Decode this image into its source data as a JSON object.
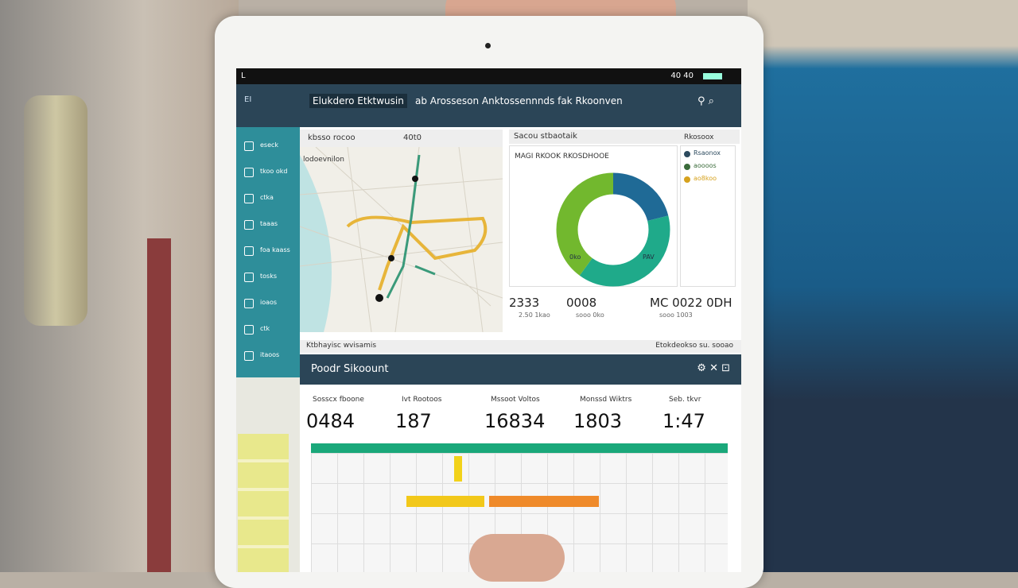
{
  "status_bar": {
    "left": "L",
    "right": "40 40"
  },
  "header": {
    "app": "EI",
    "title": "Elukdero Etktwusin",
    "subtitle": "ab Arosseson Anktossennnds fak Rkoonven"
  },
  "sidebar": {
    "items": [
      "eseck",
      "tkoo okd",
      "ctka",
      "taaas",
      "foa kaass",
      "tosks",
      "ioaos",
      "ctk",
      "itaoos"
    ]
  },
  "map_panel": {
    "tab_left": "kbsso rocoo",
    "tab_right": "40t0",
    "label": "lodoevnilon",
    "footer": "Ktbhayisc wvisamis"
  },
  "donut_panel": {
    "tab": "Sacou stbaotaik",
    "title": "MAGI RKOOK RKOSDHOOE",
    "segments": [
      {
        "color": "#1f6a96",
        "value": 21
      },
      {
        "color": "#1faa8a",
        "value": 39
      },
      {
        "color": "#72b82e",
        "value": 40
      }
    ],
    "inner_left": "0ko",
    "inner_right": "PAV"
  },
  "legend_panel": {
    "header": "Rkosoox",
    "items": [
      {
        "label": "Rsaonox",
        "color": "#2c4a5e"
      },
      {
        "label": "aoooos",
        "color": "#3a6b3a"
      },
      {
        "label": "ao8koo",
        "color": "#d6a21e"
      }
    ]
  },
  "stats": [
    {
      "value": "2333",
      "label": "2.50 1kao"
    },
    {
      "value": "0008",
      "label": "sooo 0ko"
    },
    {
      "value": "MC 0022 0DH",
      "label": "sooo 1003"
    }
  ],
  "footer_right": "Etokdeokso su. sooao",
  "section": {
    "title": "Poodr Sikoount",
    "kpis": [
      {
        "label": "Sosscx fboone",
        "value": "0484"
      },
      {
        "label": "Ivt Rootoos",
        "value": "187"
      },
      {
        "label": "Mssoot Voltos",
        "value": "16834"
      },
      {
        "label": "Monssd Wiktrs",
        "value": "1803"
      },
      {
        "label": "Seb. tkvr",
        "value": "1:47"
      }
    ]
  }
}
